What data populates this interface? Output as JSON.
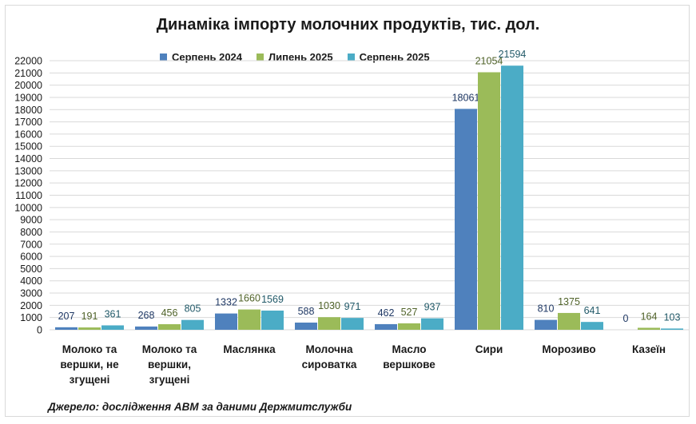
{
  "chart_data": {
    "type": "bar",
    "title": "Динаміка імпорту молочних продуктів, тис. дол.",
    "categories": [
      [
        "Молоко та",
        "вершки, не",
        "згущені"
      ],
      [
        "Молоко та",
        "вершки,",
        "згущені"
      ],
      [
        "Маслянка"
      ],
      [
        "Молочна",
        "сироватка"
      ],
      [
        "Масло",
        "вершкове"
      ],
      [
        "Сири"
      ],
      [
        "Морозиво"
      ],
      [
        "Казеїн"
      ]
    ],
    "series": [
      {
        "name": "Серпень 2024",
        "color": "#4f81bd",
        "label_color": "#1f3864",
        "values": [
          207,
          268,
          1332,
          588,
          462,
          18061,
          810,
          0
        ]
      },
      {
        "name": "Липень 2025",
        "color": "#9bbb59",
        "label_color": "#4f6228",
        "values": [
          191,
          456,
          1660,
          1030,
          527,
          21054,
          1375,
          164
        ]
      },
      {
        "name": "Серпень 2025",
        "color": "#4bacc6",
        "label_color": "#215968",
        "values": [
          361,
          805,
          1569,
          971,
          937,
          21594,
          641,
          103
        ]
      }
    ],
    "ylim": [
      0,
      22000
    ],
    "ytick_step": 1000,
    "grid": true,
    "legend": "top",
    "source": "Джерело: дослідження АВМ за даними Держмитслужби"
  }
}
